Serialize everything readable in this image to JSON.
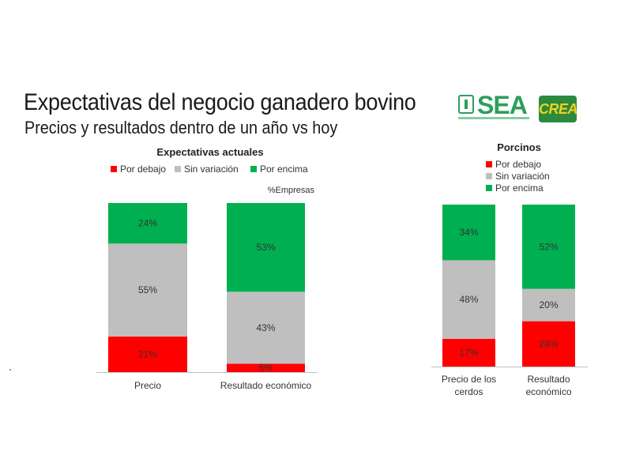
{
  "header": {
    "title": "Expectativas del negocio ganadero bovino",
    "subtitle": "Precios y resultados dentro de un año vs hoy"
  },
  "logos": {
    "sea": "SEA",
    "crea": "CREA"
  },
  "colors": {
    "below": "#ff0000",
    "same": "#bfbfbf",
    "above": "#00b050"
  },
  "chart_data": [
    {
      "type": "bar",
      "stacked": true,
      "title": "Expectativas actuales",
      "note": "%Empresas",
      "categories": [
        "Precio",
        "Resultado económico"
      ],
      "series": [
        {
          "name": "Por debajo",
          "values": [
            21,
            5
          ]
        },
        {
          "name": "Sin variación",
          "values": [
            55,
            43
          ]
        },
        {
          "name": "Por encima",
          "values": [
            24,
            53
          ]
        }
      ],
      "ylim": [
        0,
        100
      ],
      "legend": "top"
    },
    {
      "type": "bar",
      "stacked": true,
      "title": "Porcinos",
      "categories": [
        [
          "Precio de los",
          "cerdos"
        ],
        [
          "Resultado",
          "económico"
        ]
      ],
      "series": [
        {
          "name": "Por debajo",
          "values": [
            17,
            28
          ]
        },
        {
          "name": "Sin variación",
          "values": [
            48,
            20
          ]
        },
        {
          "name": "Por encima",
          "values": [
            34,
            52
          ]
        }
      ],
      "ylim": [
        0,
        100
      ],
      "legend": "top-left"
    }
  ]
}
